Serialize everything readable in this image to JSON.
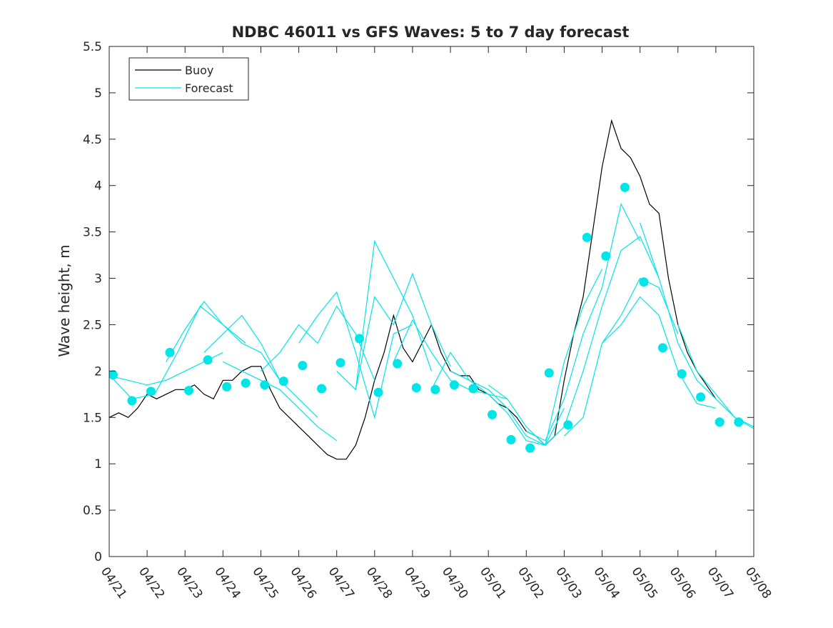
{
  "chart_data": {
    "type": "line",
    "title": "NDBC 46011 vs GFS Waves: 5 to 7 day forecast",
    "xlabel": "",
    "ylabel": "Wave height, m",
    "xlim": [
      "04/21",
      "05/08"
    ],
    "ylim": [
      0,
      5.5
    ],
    "yticks": [
      "0",
      "0.5",
      "1",
      "1.5",
      "2",
      "2.5",
      "3",
      "3.5",
      "4",
      "4.5",
      "5",
      "5.5"
    ],
    "xticks": [
      "04/21",
      "04/22",
      "04/23",
      "04/24",
      "04/25",
      "04/26",
      "04/27",
      "04/28",
      "04/29",
      "04/30",
      "05/01",
      "05/02",
      "05/03",
      "05/04",
      "05/05",
      "05/06",
      "05/07",
      "05/08"
    ],
    "x_unit": "day",
    "grid": false,
    "legend": {
      "placement": "top-left",
      "entries": [
        "Buoy",
        "Forecast"
      ]
    },
    "colors": {
      "buoy": "#000000",
      "forecast": "#00e5e8"
    },
    "series": [
      {
        "name": "Buoy",
        "style": "thin-line",
        "x": [
          0.0,
          0.25,
          0.5,
          0.75,
          1.0,
          1.25,
          1.5,
          1.75,
          2.0,
          2.25,
          2.5,
          2.75,
          3.0,
          3.25,
          3.5,
          3.75,
          4.0,
          4.25,
          4.5,
          4.75,
          5.0,
          5.25,
          5.5,
          5.75,
          6.0,
          6.25,
          6.5,
          6.75,
          7.0,
          7.25,
          7.5,
          7.75,
          8.0,
          8.25,
          8.5,
          8.75,
          9.0,
          9.25,
          9.5,
          9.75,
          10.0,
          10.25,
          10.5,
          10.75,
          11.0,
          11.25,
          11.5,
          11.75,
          12.0,
          12.25,
          12.5,
          12.75,
          13.0,
          13.25,
          13.5,
          13.75,
          14.0,
          14.25,
          14.5,
          14.75,
          15.0,
          15.25,
          15.5,
          15.75,
          16.0,
          16.25,
          16.5
        ],
        "values": [
          1.5,
          1.55,
          1.5,
          1.6,
          1.75,
          1.7,
          1.75,
          1.8,
          1.8,
          1.85,
          1.75,
          1.7,
          1.9,
          1.9,
          2.0,
          2.05,
          2.05,
          1.8,
          1.6,
          1.5,
          1.4,
          1.3,
          1.2,
          1.1,
          1.05,
          1.05,
          1.2,
          1.5,
          1.9,
          2.2,
          2.6,
          2.25,
          2.1,
          2.3,
          2.5,
          2.2,
          2.0,
          1.95,
          1.95,
          1.8,
          1.75,
          1.65,
          1.6,
          1.5,
          1.35,
          1.3,
          1.2,
          1.3,
          1.9,
          2.4,
          2.8,
          3.5,
          4.2,
          4.7,
          4.4,
          4.3,
          4.1,
          3.8,
          3.7,
          3.0,
          2.5,
          2.2,
          2.0,
          1.85,
          1.7,
          null,
          null
        ]
      },
      {
        "name": "Forecast",
        "style": "lines-and-markers",
        "marker_x": [
          0.1,
          0.6,
          1.1,
          1.6,
          2.1,
          2.6,
          3.1,
          3.6,
          4.1,
          4.6,
          5.1,
          5.6,
          6.1,
          6.6,
          7.1,
          7.6,
          8.1,
          8.6,
          9.1,
          9.6,
          10.1,
          10.6,
          11.1,
          11.6,
          12.1,
          12.6,
          13.1,
          13.6,
          14.1,
          14.6,
          15.1,
          15.6,
          16.1,
          16.6
        ],
        "marker_values": [
          1.96,
          1.68,
          1.78,
          2.2,
          1.79,
          2.12,
          1.83,
          1.87,
          1.85,
          1.89,
          2.06,
          1.81,
          2.09,
          2.35,
          1.77,
          2.08,
          1.82,
          1.8,
          1.85,
          1.81,
          1.53,
          1.26,
          1.17,
          1.98,
          1.42,
          3.44,
          3.24,
          3.98,
          2.96,
          2.25,
          1.97,
          1.72,
          1.45,
          1.45
        ],
        "runs": [
          {
            "x": [
              0.0,
              0.5,
              1.0,
              1.5,
              2.0,
              2.5,
              3.0
            ],
            "values": [
              1.95,
              1.9,
              1.85,
              1.9,
              2.0,
              2.1,
              2.2
            ]
          },
          {
            "x": [
              0.0,
              0.6,
              1.2,
              1.8,
              2.4,
              3.0,
              3.6
            ],
            "values": [
              1.96,
              1.7,
              1.75,
              2.2,
              2.7,
              2.5,
              2.3
            ]
          },
          {
            "x": [
              1.5,
              2.0,
              2.5,
              3.0,
              3.5,
              4.0,
              4.5
            ],
            "values": [
              2.1,
              2.45,
              2.75,
              2.5,
              2.3,
              2.2,
              1.9
            ]
          },
          {
            "x": [
              2.5,
              3.0,
              3.5,
              4.0,
              4.5,
              5.0,
              5.5
            ],
            "values": [
              2.2,
              2.4,
              2.6,
              2.3,
              1.9,
              1.7,
              1.5
            ]
          },
          {
            "x": [
              3.0,
              3.5,
              4.0,
              4.5,
              5.0,
              5.5,
              6.0
            ],
            "values": [
              2.1,
              2.0,
              1.9,
              1.8,
              1.6,
              1.4,
              1.25
            ]
          },
          {
            "x": [
              4.0,
              4.5,
              5.0,
              5.5,
              6.0,
              6.5,
              7.0
            ],
            "values": [
              2.0,
              2.2,
              2.5,
              2.3,
              2.7,
              2.4,
              1.9
            ]
          },
          {
            "x": [
              5.0,
              5.5,
              6.0,
              6.5,
              7.0,
              7.5,
              8.0
            ],
            "values": [
              2.3,
              2.6,
              2.85,
              2.2,
              1.5,
              2.4,
              2.5
            ]
          },
          {
            "x": [
              6.0,
              6.5,
              7.0,
              7.5,
              8.0,
              8.5
            ],
            "values": [
              2.0,
              1.8,
              3.4,
              3.0,
              2.6,
              2.0
            ]
          },
          {
            "x": [
              6.5,
              7.0,
              7.5,
              8.0,
              8.5,
              9.0
            ],
            "values": [
              1.8,
              2.8,
              2.5,
              3.05,
              2.5,
              2.05
            ]
          },
          {
            "x": [
              7.5,
              8.0,
              8.5,
              9.0,
              9.5,
              10.0,
              10.5
            ],
            "values": [
              2.1,
              2.55,
              2.2,
              1.9,
              1.8,
              1.75,
              1.7
            ]
          },
          {
            "x": [
              8.5,
              9.0,
              9.5,
              10.0,
              10.5,
              11.0,
              11.5
            ],
            "values": [
              1.8,
              2.2,
              1.9,
              1.8,
              1.6,
              1.3,
              1.2
            ]
          },
          {
            "x": [
              9.0,
              9.5,
              10.0,
              10.5,
              11.0,
              11.5,
              12.0
            ],
            "values": [
              2.0,
              1.9,
              1.75,
              1.55,
              1.25,
              1.2,
              1.6
            ]
          },
          {
            "x": [
              10.0,
              10.5,
              11.0,
              11.5,
              12.0,
              12.5,
              13.0
            ],
            "values": [
              1.85,
              1.7,
              1.4,
              1.2,
              2.1,
              2.7,
              3.1
            ]
          },
          {
            "x": [
              11.0,
              11.5,
              12.0,
              12.5,
              13.0,
              13.5,
              14.0
            ],
            "values": [
              1.35,
              1.25,
              1.7,
              2.4,
              2.9,
              3.8,
              3.4
            ]
          },
          {
            "x": [
              11.5,
              12.0,
              12.5,
              13.0,
              13.5,
              14.0,
              14.5
            ],
            "values": [
              1.2,
              1.4,
              2.0,
              2.7,
              3.3,
              3.45,
              3.0
            ]
          },
          {
            "x": [
              12.0,
              12.5,
              13.0,
              13.5,
              14.0,
              14.5,
              15.0
            ],
            "values": [
              1.3,
              1.5,
              2.3,
              2.6,
              3.0,
              2.9,
              2.4
            ]
          },
          {
            "x": [
              13.0,
              13.5,
              14.0,
              14.5,
              15.0,
              15.5,
              16.0
            ],
            "values": [
              2.3,
              2.5,
              2.8,
              2.6,
              2.0,
              1.65,
              1.6
            ]
          },
          {
            "x": [
              14.0,
              14.5,
              15.0,
              15.5,
              16.0,
              16.5,
              17.0
            ],
            "values": [
              3.6,
              3.0,
              2.3,
              1.9,
              1.7,
              1.5,
              1.4
            ]
          },
          {
            "x": [
              15.0,
              15.5,
              16.0,
              16.5,
              17.0
            ],
            "values": [
              2.5,
              2.0,
              1.75,
              1.5,
              1.38
            ]
          }
        ]
      }
    ]
  }
}
